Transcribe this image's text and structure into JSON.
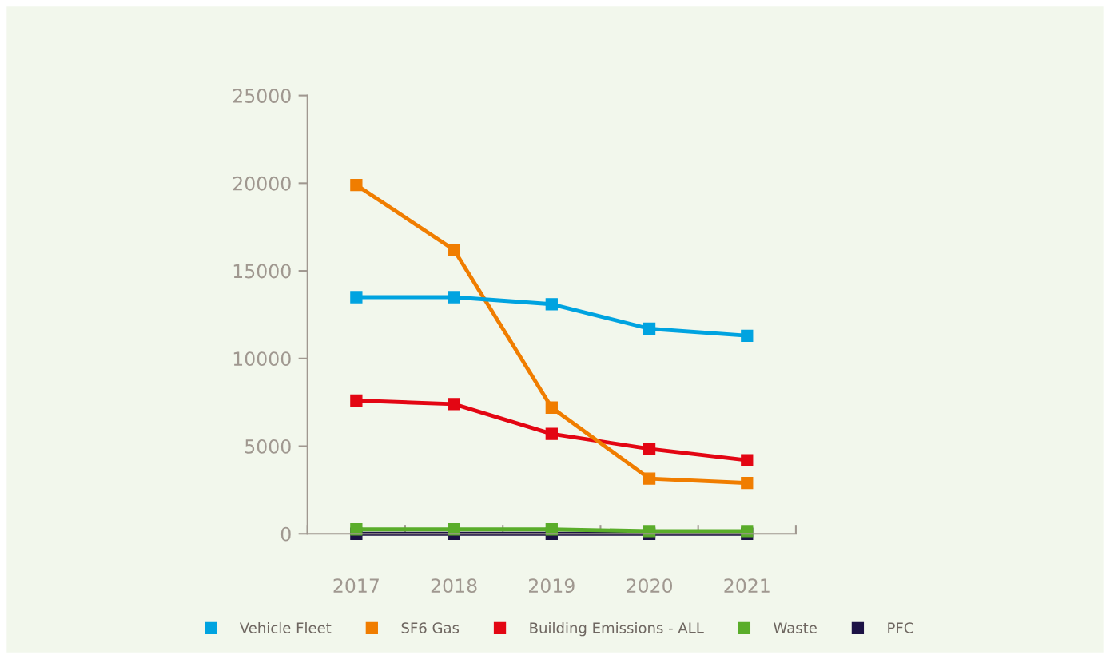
{
  "chart_data": {
    "type": "line",
    "categories": [
      "2017",
      "2018",
      "2019",
      "2020",
      "2021"
    ],
    "series": [
      {
        "name": "Vehicle Fleet",
        "color": "#00a3e0",
        "values": [
          13500,
          13500,
          13100,
          11700,
          11300
        ]
      },
      {
        "name": "SF6 Gas",
        "color": "#f07d00",
        "values": [
          19900,
          16200,
          7200,
          3150,
          2900
        ]
      },
      {
        "name": "Building Emissions - ALL",
        "color": "#e30613",
        "values": [
          7600,
          7400,
          5700,
          4850,
          4200
        ]
      },
      {
        "name": "Waste",
        "color": "#5aad2a",
        "values": [
          250,
          250,
          250,
          150,
          150
        ]
      },
      {
        "name": "PFC",
        "color": "#1c1245",
        "values": [
          0,
          0,
          0,
          0,
          0
        ]
      }
    ],
    "ylim": [
      0,
      25000
    ],
    "yticks": [
      0,
      5000,
      10000,
      15000,
      20000,
      25000
    ],
    "grid": false,
    "legend": "bottom",
    "marker": "square",
    "line_style": "solid"
  }
}
